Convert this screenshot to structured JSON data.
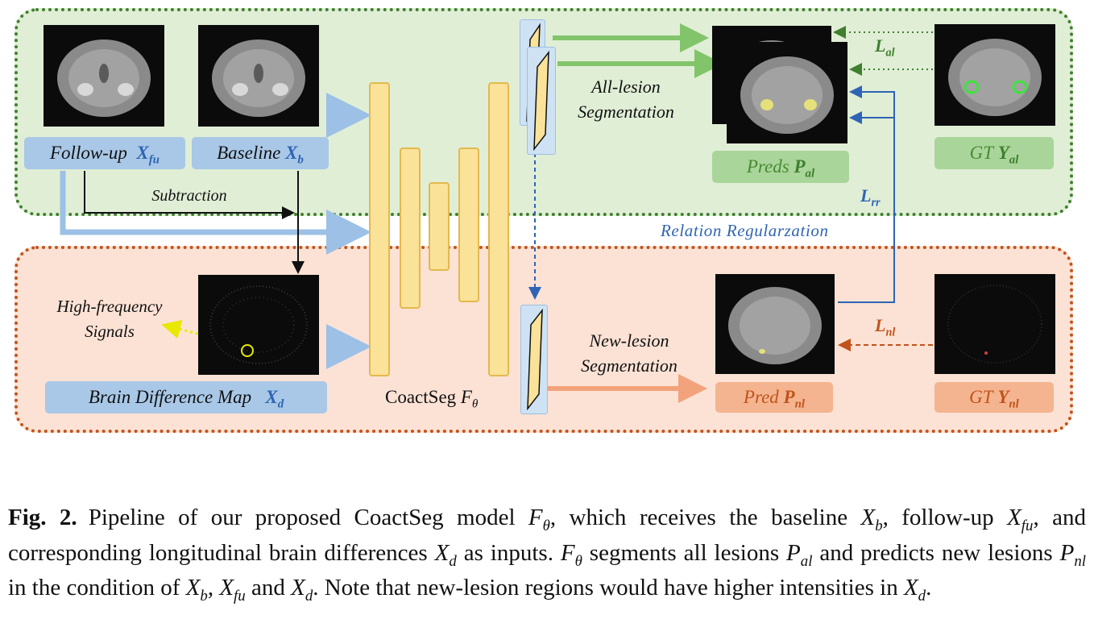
{
  "diagram": {
    "inputs": {
      "followup_label": "Follow-up",
      "followup_var": "X",
      "followup_sub": "fu",
      "baseline_label": "Baseline",
      "baseline_var": "X",
      "baseline_sub": "b",
      "subtraction_label": "Subtraction",
      "difference_label": "Brain Difference Map",
      "difference_var": "X",
      "difference_sub": "d",
      "high_freq_line1": "High-frequency",
      "high_freq_line2": "Signals"
    },
    "model": {
      "name": "CoactSeg",
      "symbol": "F",
      "symbol_sub": "θ"
    },
    "all_lesion": {
      "task_line1": "All-lesion",
      "task_line2": "Segmentation",
      "pred_label": "Preds",
      "pred_var": "P",
      "pred_sub": "al",
      "gt_label": "GT",
      "gt_var": "Y",
      "gt_sub": "al",
      "loss_var": "L",
      "loss_sub": "al"
    },
    "new_lesion": {
      "task_line1": "New-lesion",
      "task_line2": "Segmentation",
      "pred_label": "Pred",
      "pred_var": "P",
      "pred_sub": "nl",
      "gt_label": "GT",
      "gt_var": "Y",
      "gt_sub": "nl",
      "loss_var": "L",
      "loss_sub": "nl"
    },
    "relation": {
      "label": "Relation Regularzation",
      "loss_var": "L",
      "loss_sub": "rr"
    },
    "colors": {
      "green_panel": "#e0eed6",
      "orange_panel": "#fbe2d5",
      "blue_accent": "#2f64b5",
      "green_accent": "#3f7f2e",
      "orange_accent": "#c0531c",
      "decoder_bar": "#fbe299"
    }
  },
  "caption": {
    "fig_label": "Fig. 2.",
    "s1": "Pipeline of our proposed CoactSeg model ",
    "f_theta": "F",
    "f_theta_sub": "θ",
    "s2": ", which receives the baseline ",
    "xb": "X",
    "xb_sub": "b",
    "s3": ", follow-up ",
    "xfu": "X",
    "xfu_sub": "fu",
    "s4": ", and corresponding longitudinal brain differences ",
    "xd": "X",
    "xd_sub": "d",
    "s5": " as inputs. ",
    "f2": "F",
    "f2_sub": "θ",
    "s6": " segments all lesions ",
    "pal": "P",
    "pal_sub": "al",
    "s7": " and predicts new lesions ",
    "pnl": "P",
    "pnl_sub": "nl",
    "s8": " in the condition of ",
    "xb2": "X",
    "xb2_sub": "b",
    "s9": ", ",
    "xfu2": "X",
    "xfu2_sub": "fu",
    "s10": " and ",
    "xd2": "X",
    "xd2_sub": "d",
    "s11": ". Note that new-lesion regions would have higher intensities in ",
    "xd3": "X",
    "xd3_sub": "d",
    "s12": "."
  }
}
